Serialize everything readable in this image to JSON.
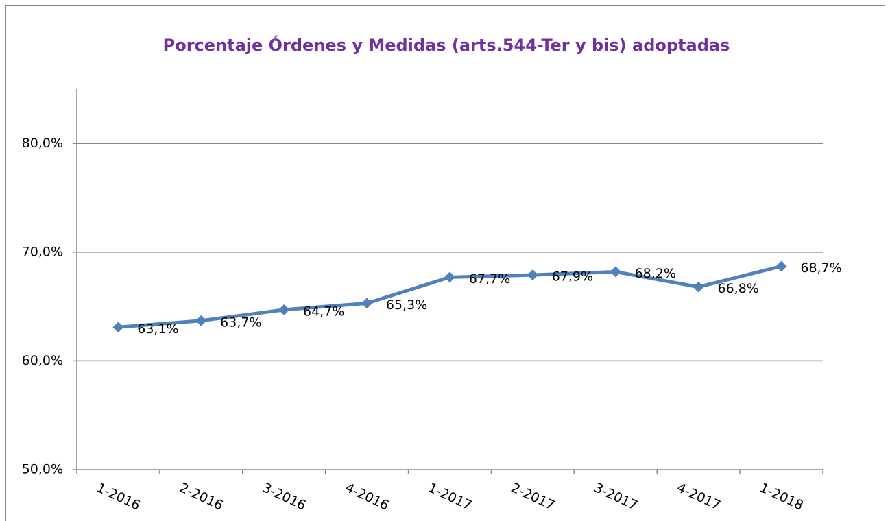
{
  "chart_data": {
    "type": "line",
    "title": "Porcentaje Órdenes y Medidas (arts.544-Ter y bis) adoptadas",
    "categories": [
      "1-2016",
      "2-2016",
      "3-2016",
      "4-2016",
      "1-2017",
      "2-2017",
      "3-2017",
      "4-2017",
      "1-2018"
    ],
    "series": [
      {
        "name": "Porcentaje",
        "color": "#4f81bd",
        "values": [
          63.1,
          63.7,
          64.7,
          65.3,
          67.7,
          67.9,
          68.2,
          66.8,
          68.7
        ],
        "value_labels": [
          "63,1%",
          "63,7%",
          "64,7%",
          "65,3%",
          "67,7%",
          "67,9%",
          "68,2%",
          "66,8%",
          "68,7%"
        ]
      }
    ],
    "ylim": [
      50,
      85
    ],
    "yticks": [
      {
        "value": 50,
        "label": "50,0%"
      },
      {
        "value": 60,
        "label": "60,0%"
      },
      {
        "value": 70,
        "label": "70,0%"
      },
      {
        "value": 80,
        "label": "80,0%"
      }
    ],
    "grid": true
  }
}
